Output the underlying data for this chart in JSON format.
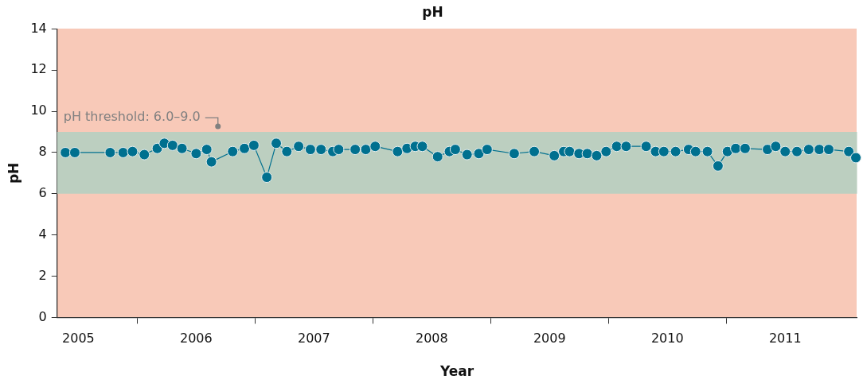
{
  "chart_data": {
    "type": "line",
    "title": "pH",
    "xlabel": "Year",
    "ylabel": "pH",
    "x": [
      2005.39,
      2005.47,
      2005.77,
      2005.88,
      2005.96,
      2006.06,
      2006.17,
      2006.23,
      2006.3,
      2006.38,
      2006.5,
      2006.59,
      2006.63,
      2006.81,
      2006.91,
      2006.99,
      2007.1,
      2007.18,
      2007.27,
      2007.37,
      2007.47,
      2007.56,
      2007.66,
      2007.71,
      2007.85,
      2007.94,
      2008.02,
      2008.21,
      2008.29,
      2008.36,
      2008.42,
      2008.55,
      2008.65,
      2008.7,
      2008.8,
      2008.9,
      2008.97,
      2009.2,
      2009.37,
      2009.54,
      2009.62,
      2009.67,
      2009.75,
      2009.82,
      2009.9,
      2009.98,
      2010.07,
      2010.15,
      2010.32,
      2010.4,
      2010.47,
      2010.57,
      2010.68,
      2010.74,
      2010.84,
      2010.93,
      2011.01,
      2011.08,
      2011.16,
      2011.35,
      2011.42,
      2011.5,
      2011.6,
      2011.7,
      2011.79,
      2011.87,
      2012.04,
      2012.1
    ],
    "series": [
      {
        "color": "#00708f",
        "values": [
          8.0,
          8.0,
          8.0,
          8.0,
          8.05,
          7.9,
          8.2,
          8.45,
          8.35,
          8.2,
          7.95,
          8.15,
          7.55,
          8.05,
          8.2,
          8.35,
          6.8,
          8.45,
          8.05,
          8.3,
          8.15,
          8.15,
          8.05,
          8.15,
          8.15,
          8.15,
          8.3,
          8.05,
          8.2,
          8.3,
          8.3,
          7.8,
          8.05,
          8.15,
          7.9,
          7.95,
          8.15,
          7.95,
          8.05,
          7.85,
          8.05,
          8.05,
          7.95,
          7.95,
          7.85,
          8.05,
          8.3,
          8.3,
          8.3,
          8.05,
          8.05,
          8.05,
          8.15,
          8.05,
          8.05,
          7.35,
          8.05,
          8.2,
          8.2,
          8.15,
          8.3,
          8.05,
          8.05,
          8.15,
          8.15,
          8.15,
          8.05,
          7.75
        ]
      }
    ],
    "xlim": [
      2005.32,
      2012.11
    ],
    "xticks": [
      {
        "value": 2005.5,
        "label": "2005"
      },
      {
        "value": 2006,
        "label": null
      },
      {
        "value": 2006.5,
        "label": "2006"
      },
      {
        "value": 2007,
        "label": null
      },
      {
        "value": 2007.5,
        "label": "2007"
      },
      {
        "value": 2008,
        "label": null
      },
      {
        "value": 2008.5,
        "label": "2008"
      },
      {
        "value": 2009,
        "label": null
      },
      {
        "value": 2009.5,
        "label": "2009"
      },
      {
        "value": 2010,
        "label": null
      },
      {
        "value": 2010.5,
        "label": "2010"
      },
      {
        "value": 2011,
        "label": null
      },
      {
        "value": 2011.5,
        "label": "2011"
      }
    ],
    "ylim": [
      0,
      14
    ],
    "yticks": [
      0,
      2,
      4,
      6,
      8,
      10,
      12,
      14
    ],
    "bands": [
      {
        "axis": "y",
        "from": 6,
        "to": 9,
        "label": "pH threshold: 6.0–9.0",
        "color": "#bccfc0"
      }
    ],
    "marker": "circle",
    "line_style": "solid",
    "grid": false,
    "legend": false
  }
}
